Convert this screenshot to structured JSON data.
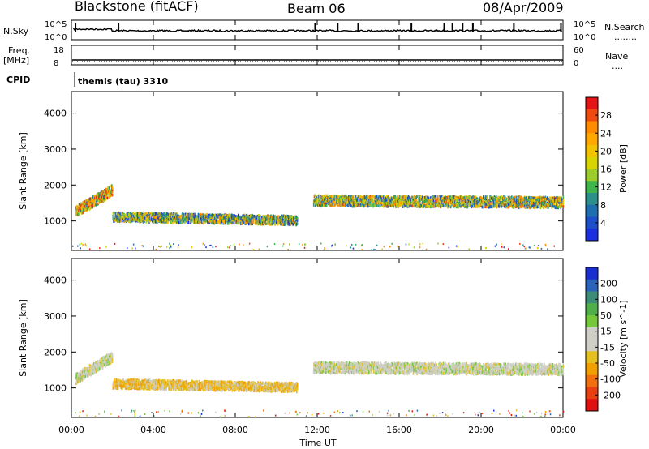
{
  "header": {
    "station": "Blackstone (fitACF)",
    "beam": "Beam 06",
    "date": "08/Apr/2009"
  },
  "left_labels": {
    "nsky": "N.Sky",
    "freq": "Freq.",
    "freq_unit": "[MHz]",
    "cpid": "CPID"
  },
  "right_labels": {
    "nsearch": "N.Search",
    "nsearch_line": "........",
    "nave": "Nave",
    "nave_line": "...."
  },
  "noise_panel": {
    "ytick_top": "10^5",
    "ytick_bottom": "10^0",
    "rtick_top": "10^5",
    "rtick_bottom": "10^0"
  },
  "freq_panel": {
    "ytick_top": "18",
    "ytick_bottom": "8",
    "rtick_top": "60",
    "rtick_bottom": "0"
  },
  "cpid_text": "themis (tau) 3310",
  "time_axis": {
    "label": "Time UT",
    "ticks": [
      "00:00",
      "04:00",
      "08:00",
      "12:00",
      "16:00",
      "20:00",
      "00:00"
    ]
  },
  "power_colorbar": {
    "title": "Power [dB]",
    "ticks": [
      "28",
      "24",
      "20",
      "16",
      "12",
      "8",
      "4"
    ],
    "colors": [
      "#e51515",
      "#f04a10",
      "#ff8c00",
      "#ffa800",
      "#f2c100",
      "#d8d400",
      "#9ccc2a",
      "#3fb54b",
      "#2c8f8a",
      "#1f6fb0",
      "#1d4fc8",
      "#1a2fe0"
    ]
  },
  "velocity_colorbar": {
    "title": "Velocity [m s^-1]",
    "ticks": [
      "200",
      "100",
      "50",
      "15",
      "-15",
      "-50",
      "-100",
      "-200"
    ],
    "colors": [
      "#1a2fd0",
      "#2a63b8",
      "#3d8c78",
      "#4fb04a",
      "#74c83a",
      "#cfcfc8",
      "#cfcfc8",
      "#e6c020",
      "#f0a000",
      "#f07010",
      "#e84010",
      "#e01010"
    ]
  },
  "chart_data": [
    {
      "type": "heatmap",
      "name": "power",
      "xlabel": "Time UT",
      "ylabel": "Slant Range [km]",
      "xlim": [
        0,
        24
      ],
      "ylim": [
        180,
        4600
      ],
      "yticks": [
        1000,
        2000,
        3000,
        4000
      ],
      "colorbar_label": "Power [dB]",
      "colorbar_range": [
        0,
        30
      ],
      "scatter_bands": [
        {
          "t": [
            0.2,
            2.0
          ],
          "r_center": [
            1300,
            1900
          ],
          "r_width": 300,
          "value_db": 18
        },
        {
          "t": [
            2.0,
            11.0
          ],
          "r_center": [
            1150,
            1050
          ],
          "r_width": 250,
          "value_db": 12
        },
        {
          "t": [
            11.8,
            24.0
          ],
          "r_center": [
            1600,
            1550
          ],
          "r_width": 300,
          "value_db": 14
        }
      ]
    },
    {
      "type": "heatmap",
      "name": "velocity",
      "xlabel": "Time UT",
      "ylabel": "Slant Range [km]",
      "xlim": [
        0,
        24
      ],
      "ylim": [
        180,
        4600
      ],
      "yticks": [
        1000,
        2000,
        3000,
        4000
      ],
      "colorbar_label": "Velocity [m s^-1]",
      "colorbar_range": [
        -250,
        250
      ],
      "scatter_bands": [
        {
          "t": [
            0.2,
            2.0
          ],
          "r_center": [
            1300,
            1900
          ],
          "r_width": 300,
          "value_ms": 0
        },
        {
          "t": [
            2.0,
            11.0
          ],
          "r_center": [
            1150,
            1050
          ],
          "r_width": 250,
          "value_ms": -60
        },
        {
          "t": [
            11.8,
            24.0
          ],
          "r_center": [
            1600,
            1550
          ],
          "r_width": 300,
          "value_ms": 0
        }
      ]
    }
  ]
}
